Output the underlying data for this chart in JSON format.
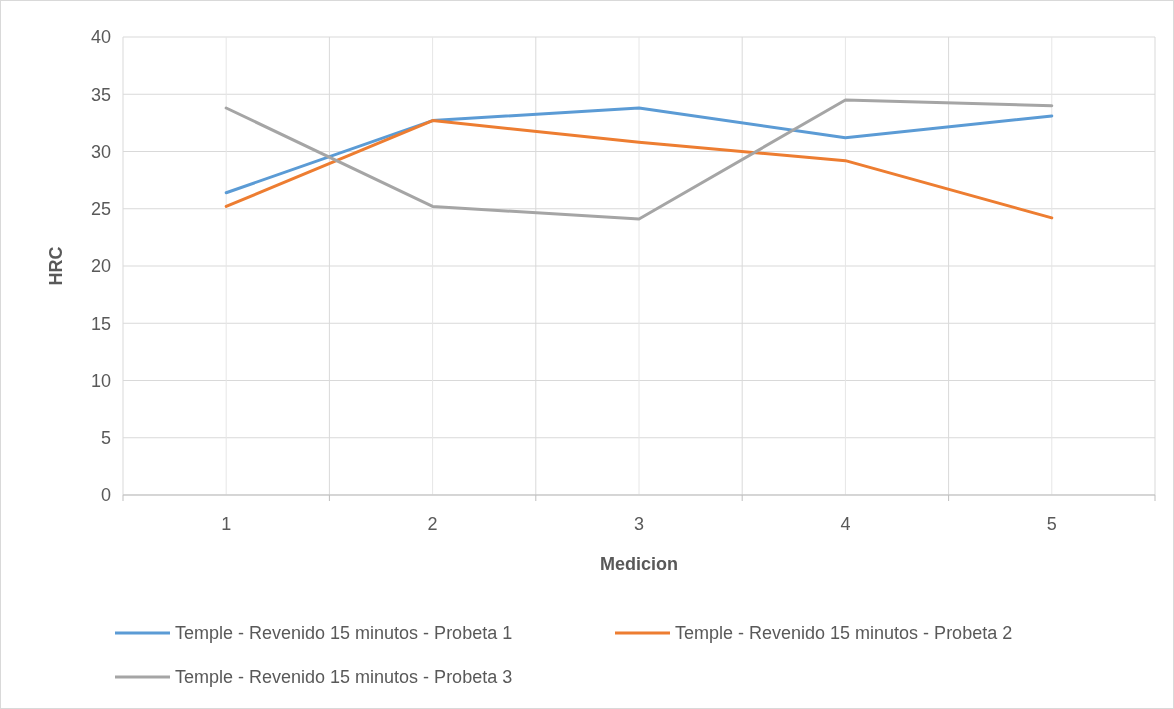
{
  "chart_data": {
    "type": "line",
    "xlabel": "Medicion",
    "ylabel": "HRC",
    "categories": [
      "1",
      "2",
      "3",
      "4",
      "5"
    ],
    "series": [
      {
        "name": "Temple - Revenido  15 minutos - Probeta 1",
        "color": "#5b9bd5",
        "values": [
          26.4,
          32.7,
          33.8,
          31.2,
          33.1
        ]
      },
      {
        "name": "Temple - Revenido  15 minutos - Probeta 2",
        "color": "#ed7d31",
        "values": [
          25.2,
          32.7,
          30.8,
          29.2,
          24.2
        ]
      },
      {
        "name": "Temple - Revenido  15 minutos - Probeta 3",
        "color": "#a5a5a5",
        "values": [
          33.8,
          25.2,
          24.1,
          34.5,
          34.0
        ]
      }
    ],
    "ylim": [
      0,
      40
    ],
    "yticks": [
      0,
      5,
      10,
      15,
      20,
      25,
      30,
      35,
      40
    ],
    "grid": true,
    "legend": "bottom",
    "marker": "none",
    "line_style": "solid"
  }
}
